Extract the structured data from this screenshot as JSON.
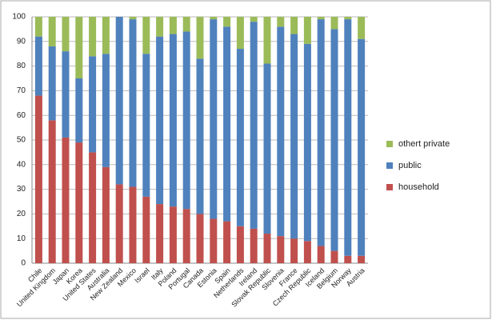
{
  "chart_data": {
    "type": "stacked-bar",
    "categories": [
      "Chile",
      "United Kingdom",
      "Japan",
      "Korea",
      "United States",
      "Australia",
      "New Zealand",
      "Mexico",
      "Israel",
      "Italy",
      "Poland",
      "Portugal",
      "Canada",
      "Estonia",
      "Spain",
      "Netherlands",
      "Ireland",
      "Slovak Republic",
      "Slovenia",
      "France",
      "Czech Republic",
      "Iceland",
      "Belgium",
      "Norway",
      "Austria"
    ],
    "series": [
      {
        "name": "household",
        "color": "#c0504d",
        "values": [
          68,
          58,
          51,
          49,
          45,
          39,
          32,
          31,
          27,
          24,
          23,
          22,
          20,
          18,
          17,
          15,
          14,
          12,
          11,
          10,
          9,
          7,
          5,
          3,
          3
        ]
      },
      {
        "name": "public",
        "color": "#4f81bd",
        "values": [
          24,
          30,
          35,
          26,
          39,
          46,
          68,
          68,
          58,
          68,
          70,
          72,
          63,
          81,
          79,
          72,
          84,
          69,
          85,
          83,
          80,
          92,
          90,
          96,
          88
        ]
      },
      {
        "name": "othert private",
        "color": "#9bbb59",
        "values": [
          8,
          12,
          14,
          25,
          16,
          15,
          0,
          1,
          15,
          8,
          7,
          6,
          17,
          1,
          4,
          13,
          2,
          19,
          4,
          7,
          11,
          1,
          5,
          1,
          9
        ]
      }
    ],
    "ylim": [
      0,
      100
    ],
    "yticks": [
      0,
      10,
      20,
      30,
      40,
      50,
      60,
      70,
      80,
      90,
      100
    ],
    "grid": true,
    "legend": "right"
  }
}
